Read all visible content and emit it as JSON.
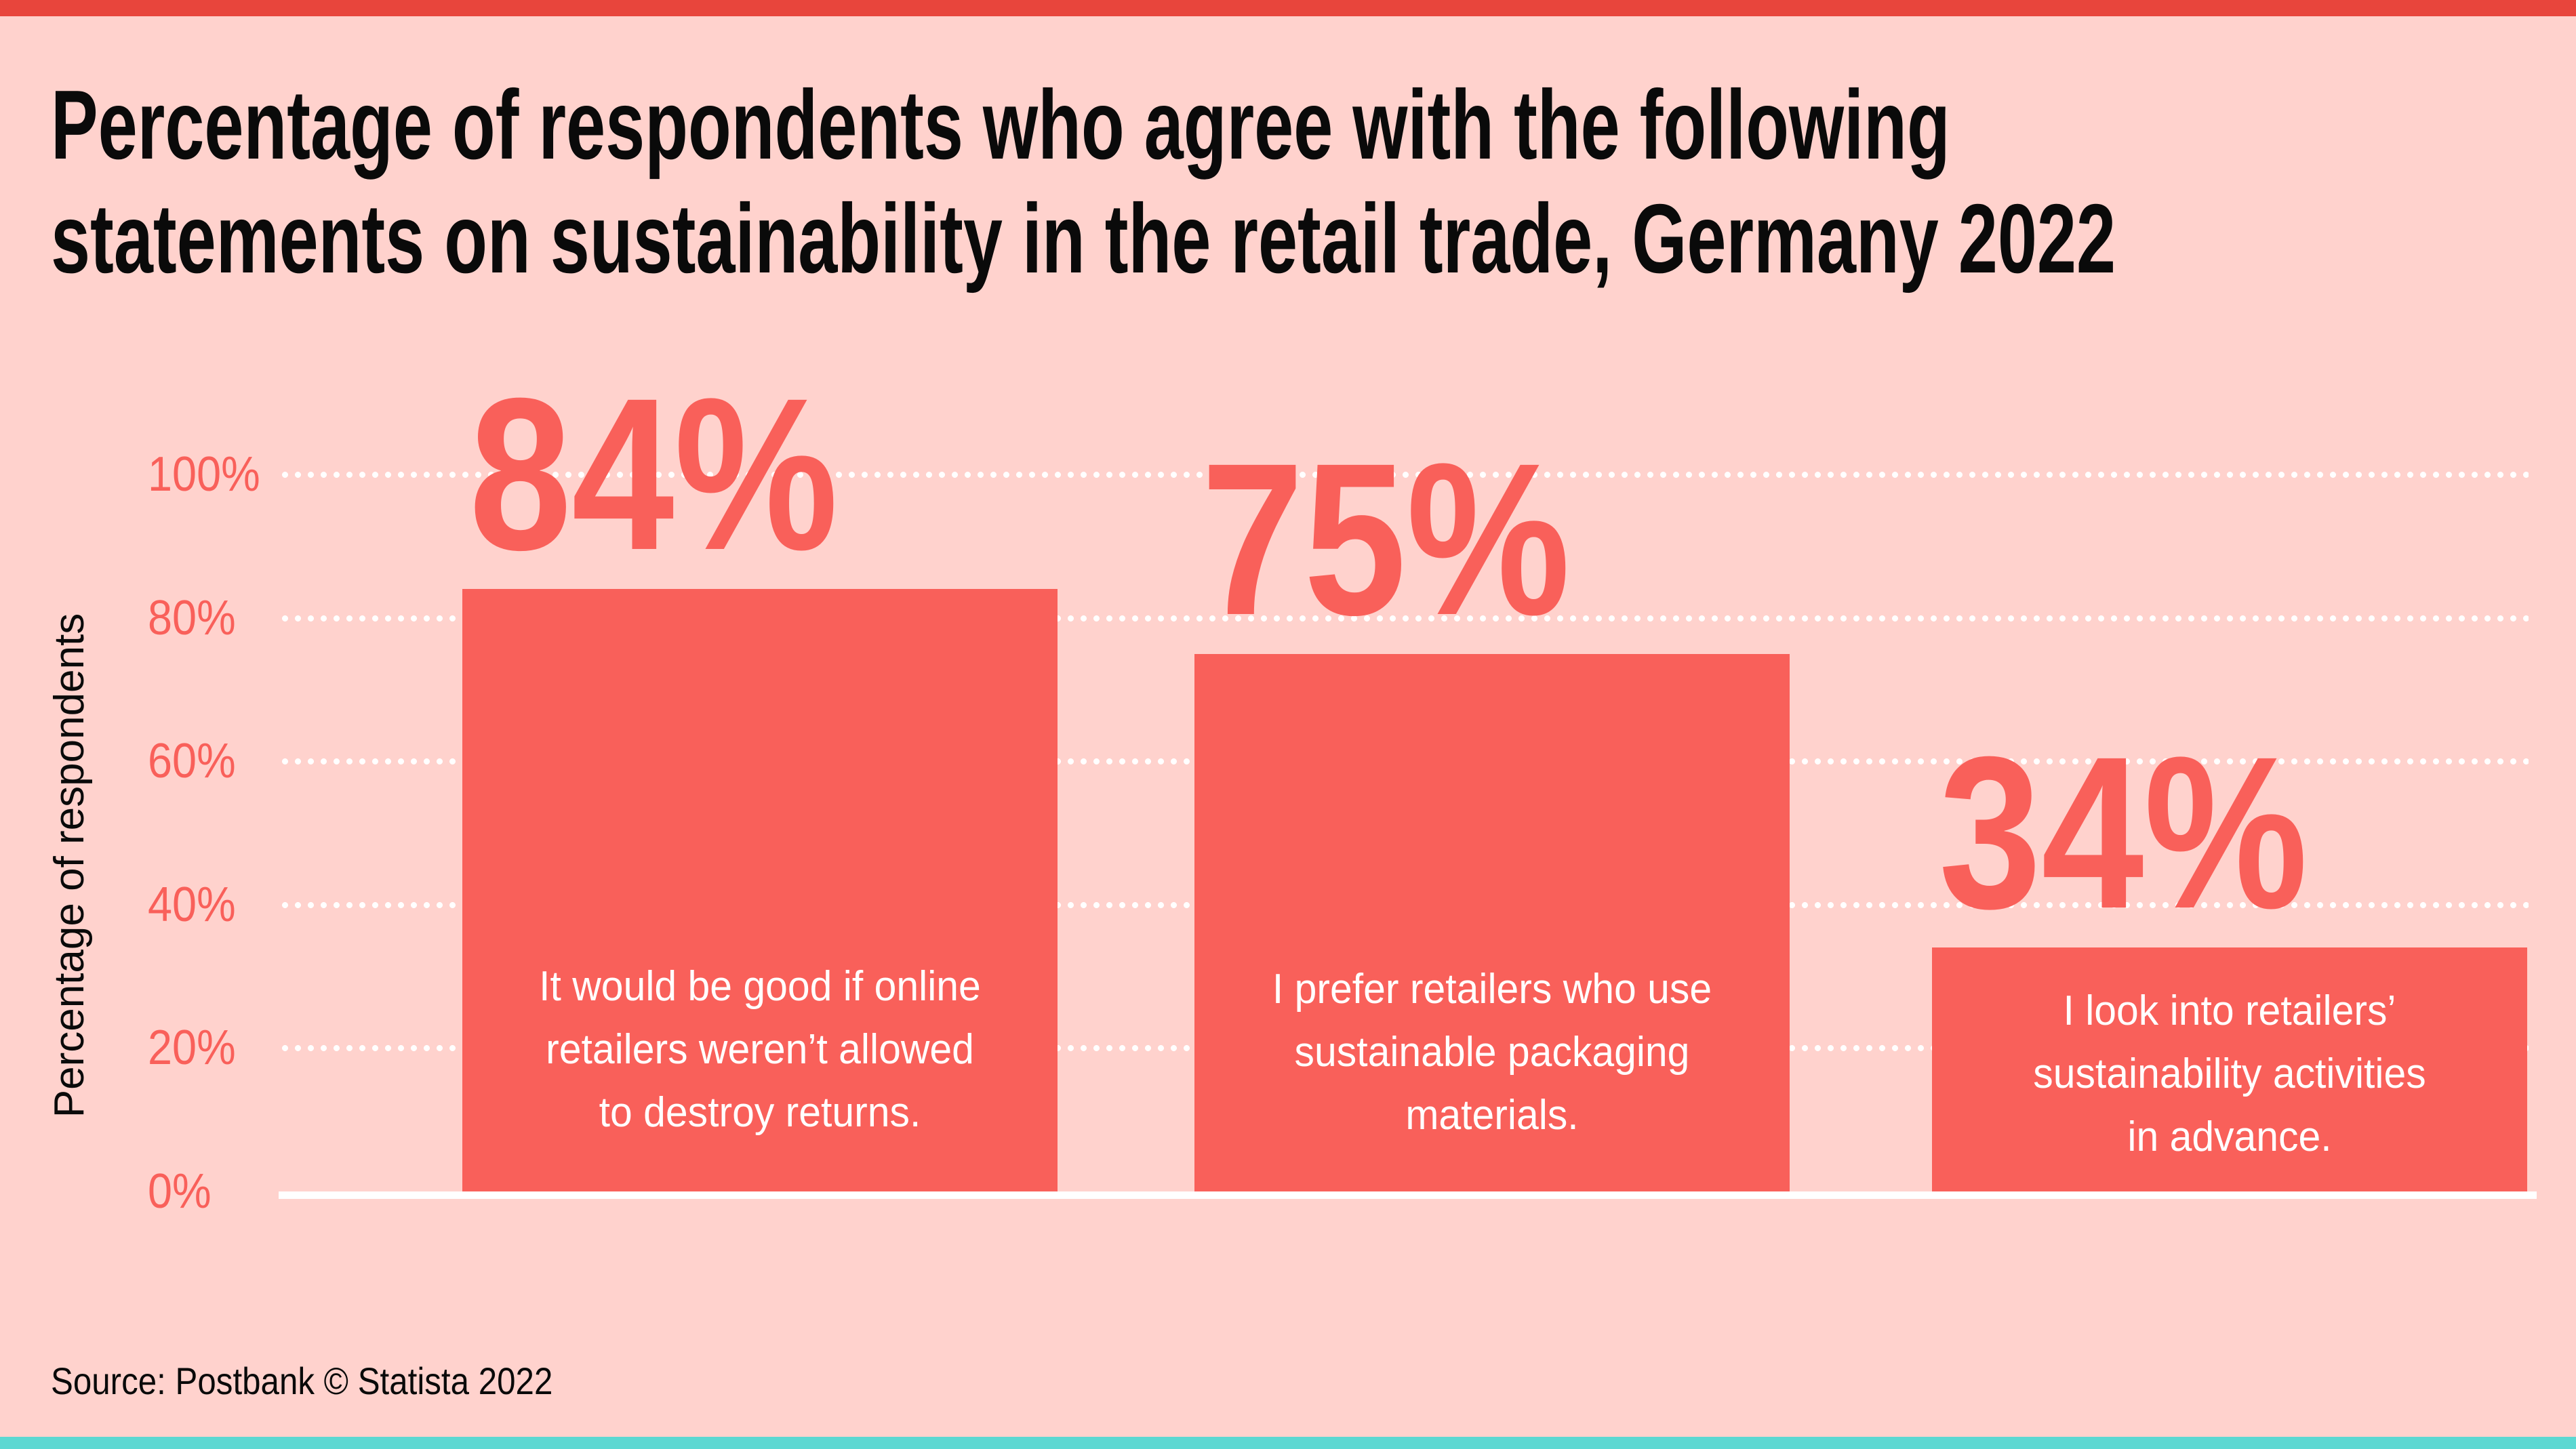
{
  "page": {
    "title_line1": "Percentage of respondents who agree with the following",
    "title_line2": "statements on sustainability in the retail trade, Germany 2022",
    "source": "Source: Postbank © Statista 2022"
  },
  "colors": {
    "background": "#ffd2cd",
    "accent_coral": "#f9605a",
    "top_stripe": "#e8453c",
    "bottom_stripe": "#5cd8d2",
    "text_black": "#0a0a0a",
    "text_white": "#ffffff",
    "gridline_white": "#ffffff"
  },
  "chart_data": {
    "type": "bar",
    "title": "Percentage of respondents who agree with the following statements on sustainability in the retail trade, Germany 2022",
    "xlabel": "",
    "ylabel": "Percentage of respondents",
    "ylim": [
      0,
      100
    ],
    "ytick_values": [
      100,
      80,
      60,
      40,
      20,
      0
    ],
    "ytick_labels": [
      "100%",
      "80%",
      "60%",
      "40%",
      "20%",
      "0%"
    ],
    "grid": "horizontal dotted white lines at 20/40/60/80/100, solid white baseline at 0",
    "legend": "none",
    "categories": [
      "It would be good if online retailers weren’t allowed to destroy returns.",
      "I prefer retailers who use sustainable packaging materials.",
      "I look into retailers’ sustainability activities in advance."
    ],
    "values": [
      84,
      75,
      34
    ],
    "value_labels": [
      "84%",
      "75%",
      "34%"
    ],
    "statement_lines": [
      [
        "It would be good if online",
        "retailers weren’t allowed",
        "to destroy returns."
      ],
      [
        "I prefer retailers who use",
        "sustainable packaging",
        "materials."
      ],
      [
        "I look into retailers’",
        "sustainability activities",
        "in advance."
      ]
    ]
  }
}
